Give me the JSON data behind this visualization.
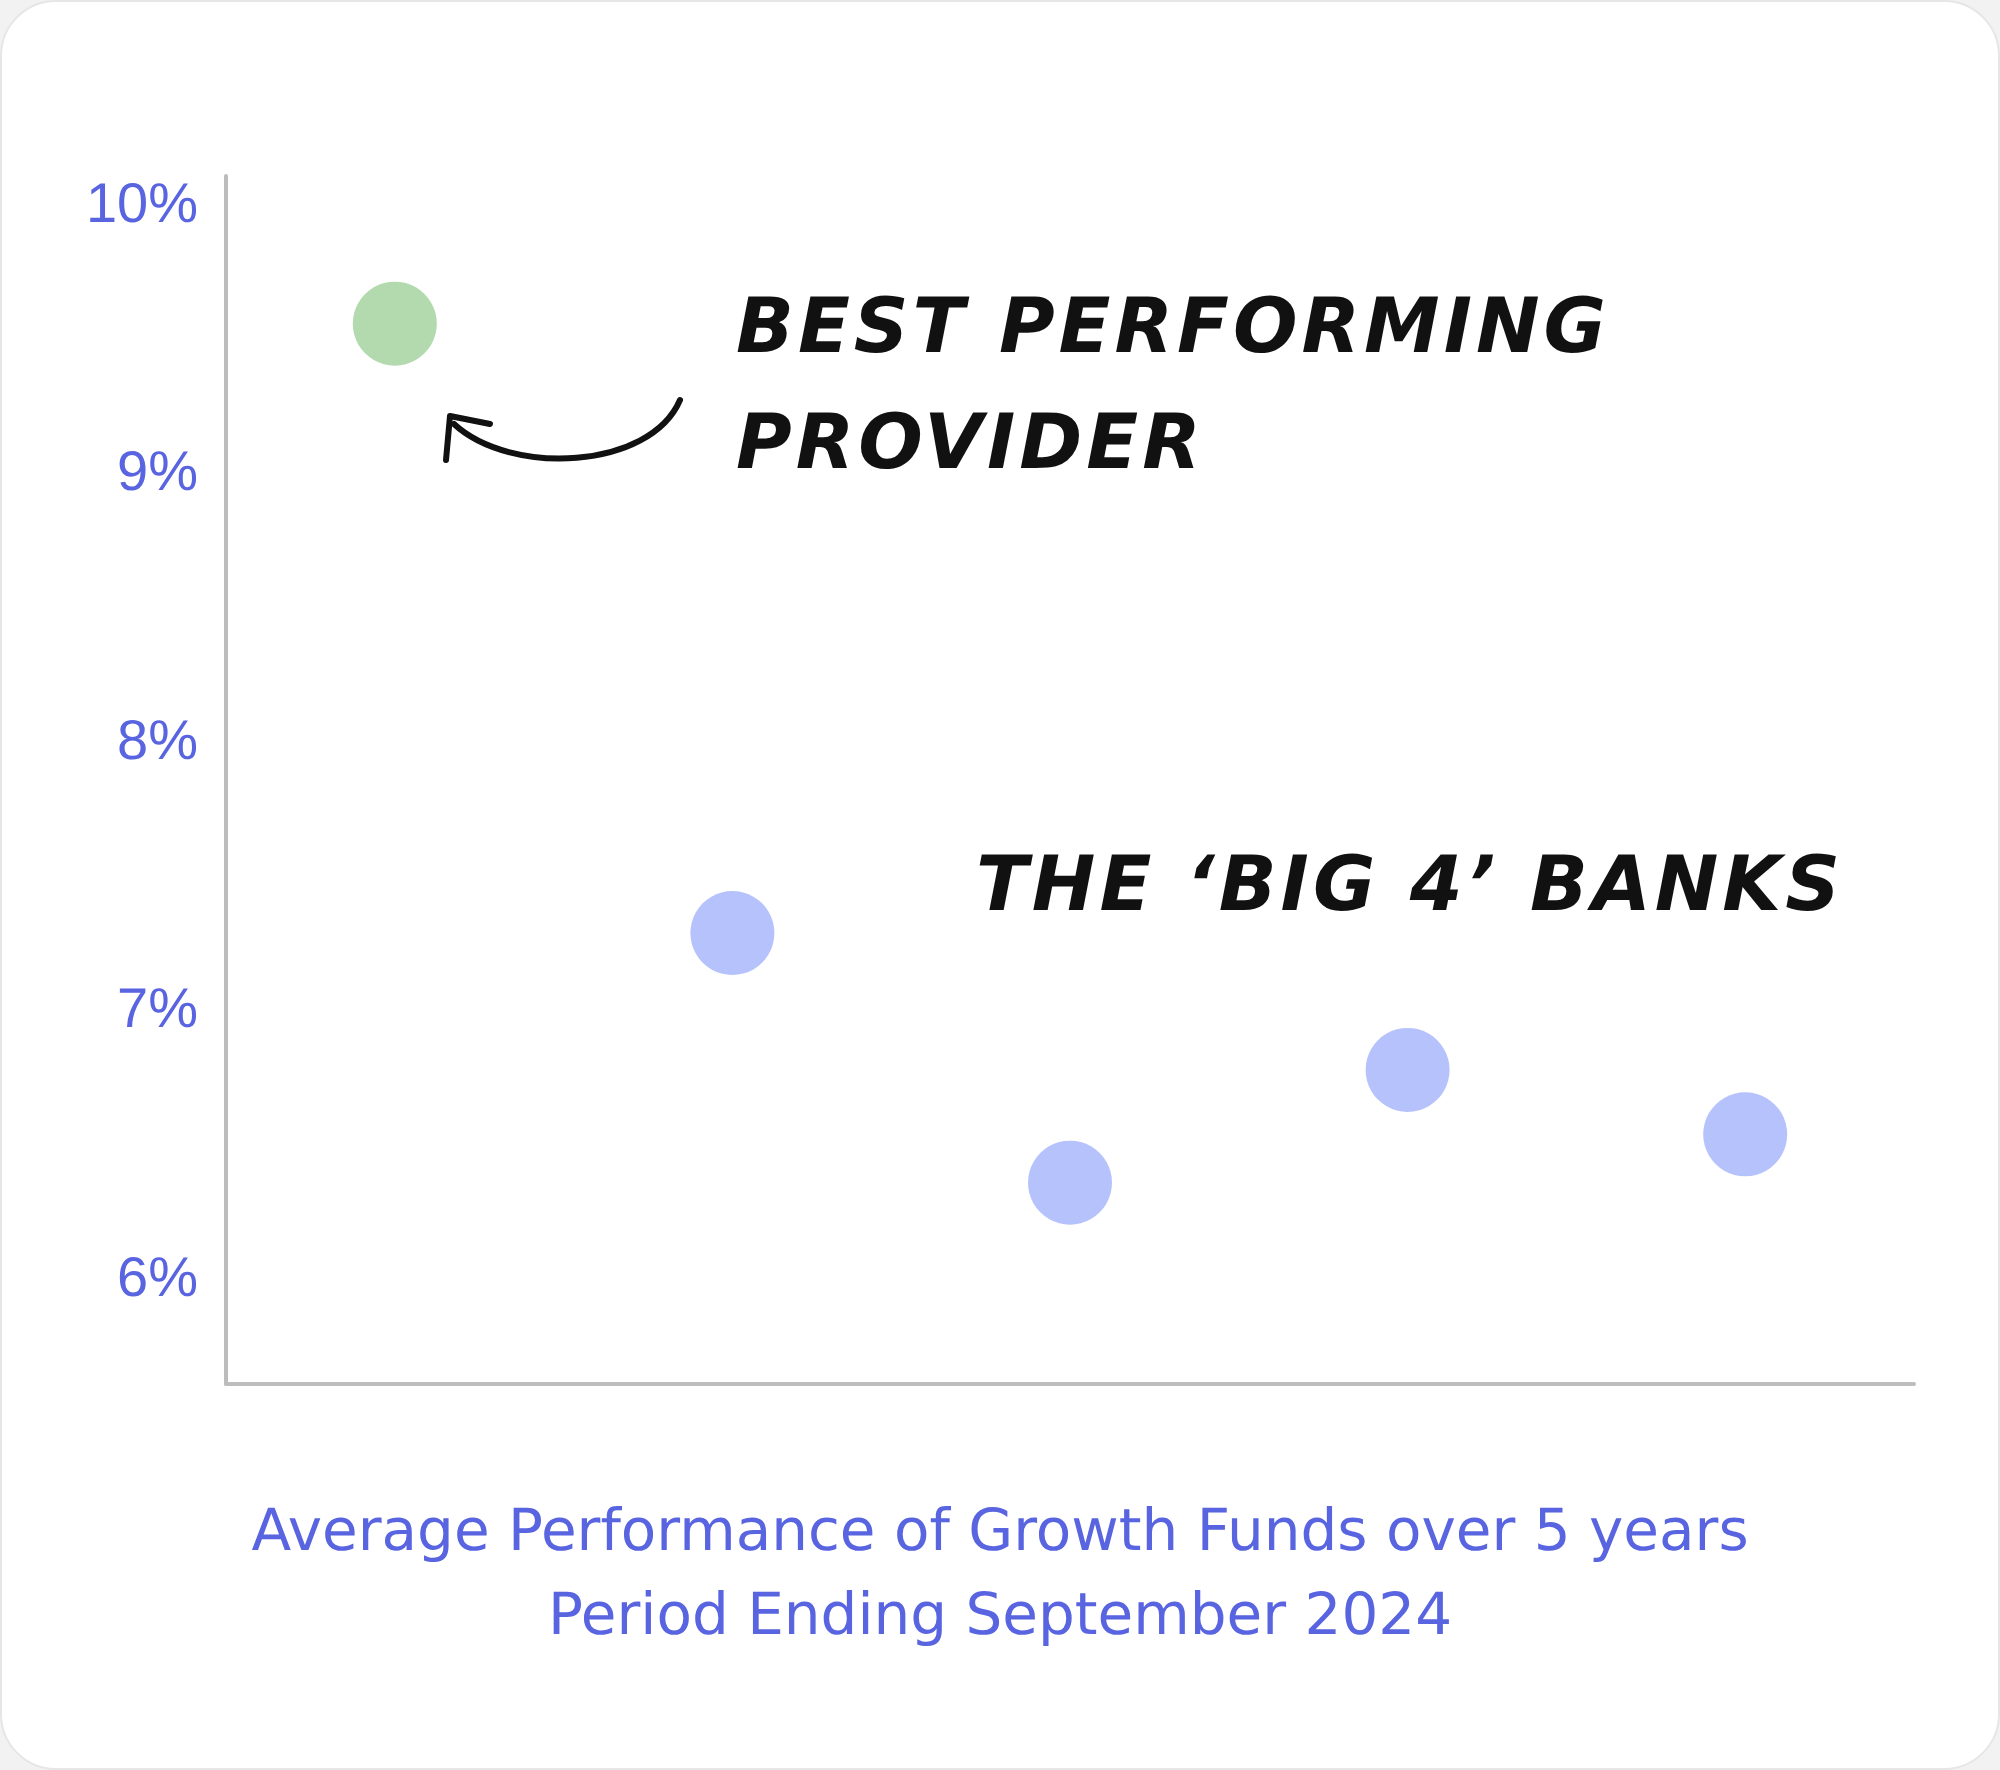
{
  "chart_data": {
    "type": "scatter",
    "title": "Average Performance of Growth Funds over 5 years\nPeriod Ending September 2024",
    "categories": [
      null,
      null,
      null,
      null,
      null
    ],
    "values": [
      9.55,
      7.28,
      6.35,
      6.77,
      6.53
    ],
    "colors": [
      "#9fd19a",
      "#a4b3fb",
      "#a4b3fb",
      "#a4b3fb",
      "#a4b3fb"
    ],
    "ylim": [
      5.6,
      10.1
    ],
    "yticks": [
      {
        "value": 6,
        "label": "6%"
      },
      {
        "value": 7,
        "label": "7%"
      },
      {
        "value": 8,
        "label": "8%"
      },
      {
        "value": 9,
        "label": "9%"
      },
      {
        "value": 10,
        "label": "10%"
      }
    ],
    "grid": false,
    "marker": "circle",
    "annotations": [
      "BEST PERFORMING\nPROVIDER",
      "THE ‘BIG 4’ BANKS"
    ]
  }
}
